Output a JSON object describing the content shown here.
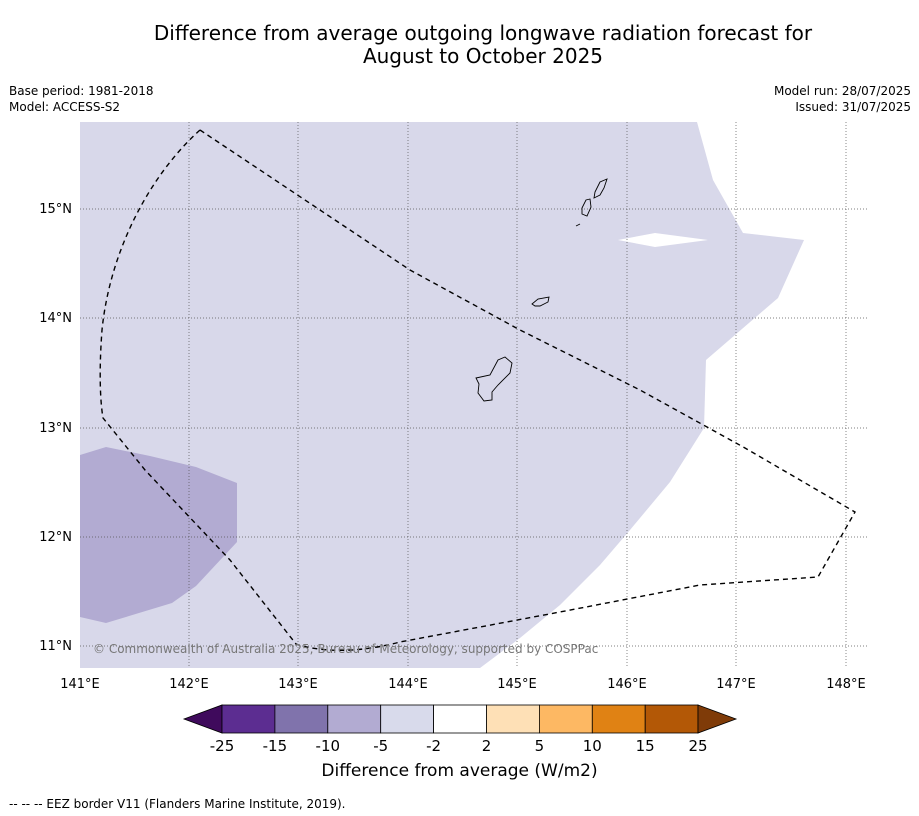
{
  "header": {
    "title_line1": "Difference from average outgoing longwave radiation forecast for",
    "title_line2": "August to October 2025",
    "base_period": "Base period: 1981-2018",
    "model": "Model: ACCESS-S2",
    "model_run": "Model run: 28/07/2025",
    "issued": "Issued: 31/07/2025"
  },
  "map": {
    "lon_labels": [
      "141°E",
      "142°E",
      "143°E",
      "144°E",
      "145°E",
      "146°E",
      "147°E",
      "148°E"
    ],
    "lat_labels": [
      "15°N",
      "14°N",
      "13°N",
      "12°N",
      "11°N"
    ],
    "copyright": "© Commonwealth of Australia 2025, Bureau of Meteorology, supported by COSPPac",
    "colors": {
      "band_-5_-2": "#d8d8ea",
      "band_-10_-5": "#b2abd2"
    }
  },
  "colorbar": {
    "ticks": [
      "-25",
      "-15",
      "-10",
      "-5",
      "-2",
      "2",
      "5",
      "10",
      "15",
      "25"
    ],
    "colors": [
      "#3f0a5c",
      "#5c2d91",
      "#8073ac",
      "#b2abd2",
      "#d8daeb",
      "#ffffff",
      "#fee0b6",
      "#fdb863",
      "#e08214",
      "#b35806",
      "#7f3b08"
    ],
    "label": "Difference from average (W/m2)"
  },
  "footnote": "--  --  -- EEZ border V11 (Flanders Marine Institute, 2019)."
}
